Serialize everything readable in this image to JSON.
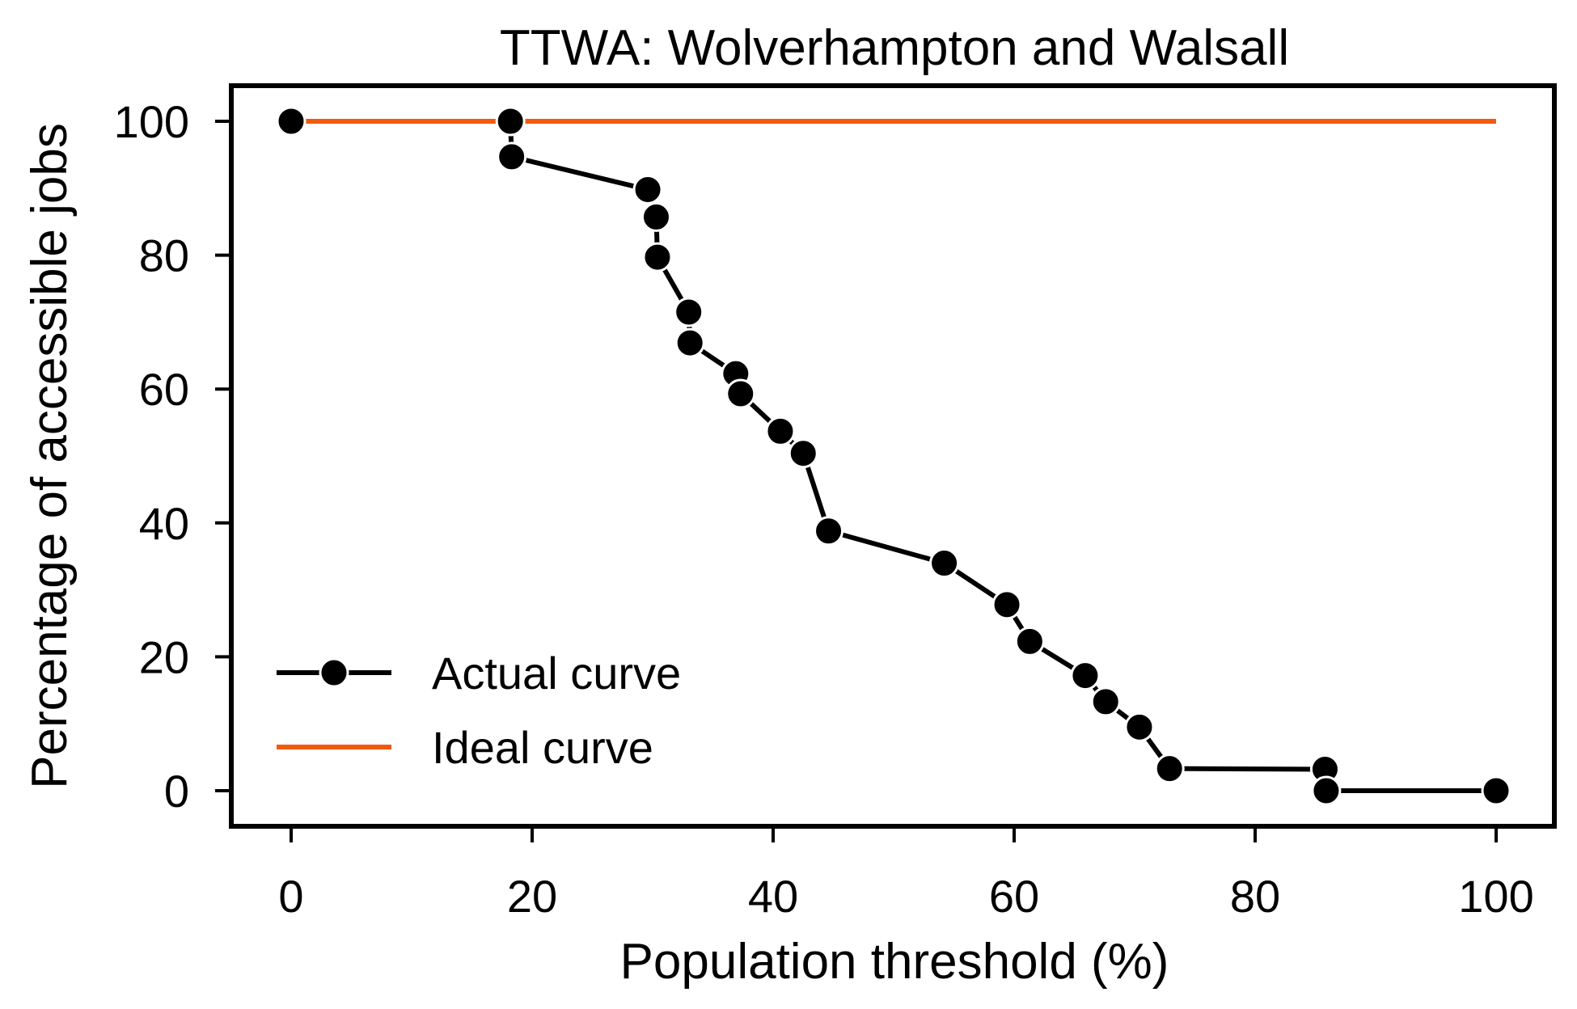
{
  "chart_data": {
    "type": "line",
    "title": "TTWA: Wolverhampton and Walsall",
    "xlabel": "Population threshold (%)",
    "ylabel": "Percentage of accessible jobs",
    "xlim": [
      -5,
      105
    ],
    "ylim": [
      -5,
      105
    ],
    "xticks": [
      0,
      20,
      40,
      60,
      80,
      100
    ],
    "yticks": [
      0,
      20,
      40,
      60,
      80,
      100
    ],
    "xtick_labels": [
      "0",
      "20",
      "40",
      "60",
      "80",
      "100"
    ],
    "ytick_labels": [
      "0",
      "20",
      "40",
      "60",
      "80",
      "100"
    ],
    "grid": false,
    "legend_position": "lower-left",
    "series": [
      {
        "name": "Actual curve",
        "color": "#000000",
        "marker": "circle",
        "x": [
          0,
          18.2,
          18.3,
          29.6,
          30.3,
          30.4,
          33.0,
          33.1,
          36.9,
          37.3,
          40.6,
          42.5,
          44.6,
          54.2,
          59.4,
          61.3,
          65.9,
          67.6,
          70.4,
          72.9,
          85.8,
          85.9,
          100
        ],
        "y": [
          100,
          100,
          94.7,
          89.8,
          85.7,
          79.7,
          71.5,
          66.9,
          62.3,
          59.3,
          53.7,
          50.4,
          38.8,
          34.0,
          27.8,
          22.3,
          17.2,
          13.3,
          9.5,
          3.3,
          3.2,
          0,
          0
        ]
      },
      {
        "name": "Ideal curve",
        "color": "#f15a0f",
        "marker": "none",
        "x": [
          0,
          100
        ],
        "y": [
          100,
          100
        ]
      }
    ]
  }
}
